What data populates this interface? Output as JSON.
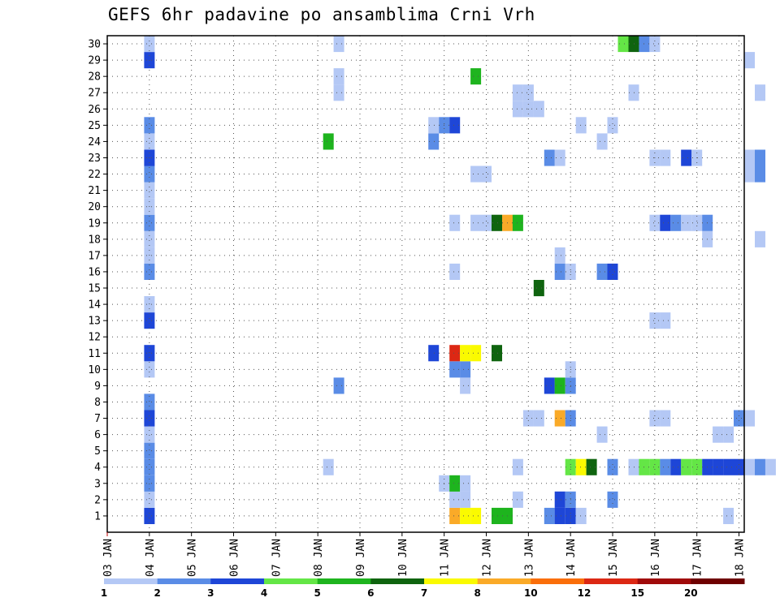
{
  "chart_data": {
    "type": "heatmap",
    "title": "GEFS 6hr padavine po ansamblima Crni Vrh",
    "xlabel": "",
    "ylabel": "",
    "x_tick_labels": [
      "03 JAN",
      "04 JAN",
      "05 JAN",
      "06 JAN",
      "07 JAN",
      "08 JAN",
      "09 JAN",
      "10 JAN",
      "11 JAN",
      "12 JAN",
      "13 JAN",
      "14 JAN",
      "15 JAN",
      "16 JAN",
      "17 JAN",
      "18 JAN"
    ],
    "y_tick_labels": [
      "1",
      "2",
      "3",
      "4",
      "5",
      "6",
      "7",
      "8",
      "9",
      "10",
      "11",
      "12",
      "13",
      "14",
      "15",
      "16",
      "17",
      "18",
      "19",
      "20",
      "21",
      "22",
      "23",
      "24",
      "25",
      "26",
      "27",
      "28",
      "29",
      "30"
    ],
    "x_unit": "6-hour step from 03 JAN 00Z",
    "x_range": [
      0,
      60
    ],
    "y_range": [
      1,
      30
    ],
    "grid": true,
    "legend": {
      "position": "bottom",
      "boundaries": [
        "1",
        "2",
        "3",
        "4",
        "5",
        "6",
        "7",
        "8",
        "10",
        "12",
        "15",
        "20"
      ],
      "colors": [
        "#b4c8f5",
        "#5a8ce6",
        "#1e46d7",
        "#64e646",
        "#1eb41e",
        "#0f640f",
        "#fafa00",
        "#faaa28",
        "#fa6e0a",
        "#dc2814",
        "#a00a0a",
        "#6e0000"
      ]
    },
    "cells": [
      [
        4,
        1,
        3
      ],
      [
        4,
        2,
        1
      ],
      [
        4,
        3,
        2
      ],
      [
        4,
        4,
        2
      ],
      [
        4,
        5,
        2
      ],
      [
        4,
        6,
        1
      ],
      [
        4,
        7,
        3
      ],
      [
        4,
        8,
        2
      ],
      [
        4,
        10,
        1
      ],
      [
        4,
        11,
        3
      ],
      [
        4,
        13,
        3
      ],
      [
        4,
        14,
        1
      ],
      [
        4,
        16,
        2
      ],
      [
        4,
        17,
        1
      ],
      [
        4,
        18,
        1
      ],
      [
        4,
        19,
        2
      ],
      [
        4,
        20,
        1
      ],
      [
        4,
        21,
        1
      ],
      [
        4,
        22,
        2
      ],
      [
        4,
        23,
        3
      ],
      [
        4,
        24,
        1
      ],
      [
        4,
        25,
        2
      ],
      [
        4,
        29,
        3
      ],
      [
        4,
        30,
        1
      ],
      [
        21,
        4,
        1
      ],
      [
        21,
        24,
        5
      ],
      [
        22,
        9,
        2
      ],
      [
        22,
        27,
        1
      ],
      [
        22,
        28,
        1
      ],
      [
        22,
        30,
        1
      ],
      [
        31,
        24,
        2
      ],
      [
        31,
        25,
        1
      ],
      [
        31,
        11,
        3
      ],
      [
        32,
        3,
        1
      ],
      [
        32,
        25,
        2
      ],
      [
        33,
        1,
        8
      ],
      [
        33,
        2,
        1
      ],
      [
        33,
        3,
        5
      ],
      [
        33,
        10,
        2
      ],
      [
        33,
        11,
        10
      ],
      [
        33,
        16,
        1
      ],
      [
        33,
        19,
        1
      ],
      [
        33,
        25,
        3
      ],
      [
        34,
        1,
        7
      ],
      [
        34,
        2,
        1
      ],
      [
        34,
        3,
        1
      ],
      [
        34,
        9,
        1
      ],
      [
        34,
        10,
        2
      ],
      [
        34,
        11,
        7
      ],
      [
        35,
        1,
        7
      ],
      [
        35,
        11,
        7
      ],
      [
        35,
        19,
        1
      ],
      [
        35,
        22,
        1
      ],
      [
        35,
        28,
        5
      ],
      [
        36,
        19,
        1
      ],
      [
        36,
        22,
        1
      ],
      [
        37,
        1,
        5
      ],
      [
        37,
        11,
        6
      ],
      [
        37,
        19,
        6
      ],
      [
        38,
        1,
        5
      ],
      [
        38,
        19,
        8
      ],
      [
        39,
        2,
        1
      ],
      [
        39,
        4,
        1
      ],
      [
        39,
        19,
        5
      ],
      [
        39,
        26,
        1
      ],
      [
        39,
        27,
        1
      ],
      [
        40,
        7,
        1
      ],
      [
        40,
        26,
        1
      ],
      [
        40,
        27,
        1
      ],
      [
        41,
        7,
        1
      ],
      [
        41,
        15,
        6
      ],
      [
        41,
        26,
        1
      ],
      [
        42,
        1,
        2
      ],
      [
        42,
        9,
        3
      ],
      [
        42,
        23,
        2
      ],
      [
        43,
        1,
        3
      ],
      [
        43,
        2,
        3
      ],
      [
        43,
        7,
        8
      ],
      [
        43,
        9,
        5
      ],
      [
        43,
        16,
        2
      ],
      [
        43,
        17,
        1
      ],
      [
        43,
        23,
        1
      ],
      [
        44,
        1,
        3
      ],
      [
        44,
        2,
        2
      ],
      [
        44,
        4,
        4
      ],
      [
        44,
        7,
        2
      ],
      [
        44,
        9,
        2
      ],
      [
        44,
        10,
        1
      ],
      [
        44,
        16,
        1
      ],
      [
        45,
        1,
        1
      ],
      [
        45,
        4,
        7
      ],
      [
        45,
        25,
        1
      ],
      [
        46,
        4,
        6
      ],
      [
        47,
        6,
        1
      ],
      [
        47,
        16,
        2
      ],
      [
        47,
        24,
        1
      ],
      [
        48,
        2,
        2
      ],
      [
        48,
        4,
        2
      ],
      [
        48,
        16,
        3
      ],
      [
        48,
        25,
        1
      ],
      [
        49,
        30,
        4
      ],
      [
        50,
        4,
        1
      ],
      [
        50,
        27,
        1
      ],
      [
        50,
        30,
        6
      ],
      [
        51,
        4,
        4
      ],
      [
        51,
        30,
        2
      ],
      [
        52,
        4,
        4
      ],
      [
        52,
        7,
        1
      ],
      [
        52,
        13,
        1
      ],
      [
        52,
        19,
        1
      ],
      [
        52,
        23,
        1
      ],
      [
        52,
        30,
        1
      ],
      [
        53,
        4,
        2
      ],
      [
        53,
        7,
        1
      ],
      [
        53,
        13,
        1
      ],
      [
        53,
        19,
        3
      ],
      [
        53,
        23,
        1
      ],
      [
        54,
        4,
        3
      ],
      [
        54,
        19,
        2
      ],
      [
        55,
        4,
        4
      ],
      [
        55,
        19,
        1
      ],
      [
        55,
        23,
        3
      ],
      [
        56,
        4,
        4
      ],
      [
        56,
        19,
        1
      ],
      [
        56,
        23,
        1
      ],
      [
        57,
        4,
        3
      ],
      [
        57,
        18,
        1
      ],
      [
        57,
        19,
        2
      ],
      [
        58,
        4,
        3
      ],
      [
        58,
        6,
        1
      ],
      [
        59,
        1,
        1
      ],
      [
        59,
        4,
        3
      ],
      [
        59,
        6,
        1
      ],
      [
        60,
        4,
        3
      ],
      [
        60,
        7,
        2
      ],
      [
        61,
        4,
        1
      ],
      [
        61,
        7,
        1
      ],
      [
        61,
        22,
        1
      ],
      [
        61,
        23,
        1
      ],
      [
        61,
        29,
        1
      ],
      [
        62,
        4,
        2
      ],
      [
        62,
        18,
        1
      ],
      [
        62,
        22,
        2
      ],
      [
        62,
        23,
        2
      ],
      [
        62,
        27,
        1
      ],
      [
        63,
        4,
        1
      ]
    ]
  }
}
